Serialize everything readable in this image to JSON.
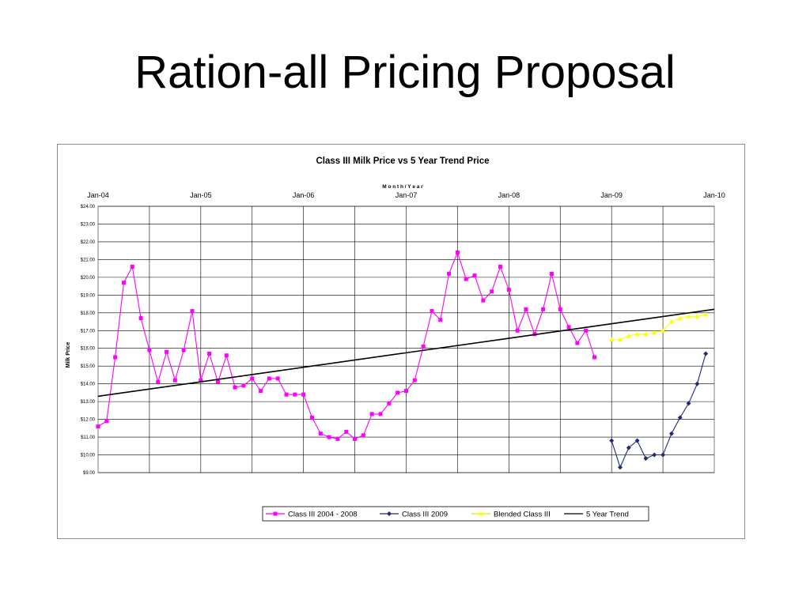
{
  "slide": {
    "title": "Ration-all Pricing Proposal"
  },
  "chart_data": {
    "type": "line",
    "title": "Class III Milk Price vs 5 Year Trend Price",
    "xlabel": "M o n t h  /  Y e a r",
    "ylabel": "Milk Price",
    "x_ticks": [
      "Jan-04",
      "Jan-05",
      "Jan-06",
      "Jan-07",
      "Jan-08",
      "Jan-09",
      "Jan-10"
    ],
    "xlim": [
      0,
      72
    ],
    "ylim": [
      9,
      24
    ],
    "y_ticks": [
      "$9.00",
      "$10.00",
      "$11.00",
      "$12.00",
      "$13.00",
      "$14.00",
      "$15.00",
      "$16.00",
      "$17.00",
      "$18.00",
      "$19.00",
      "$20.00",
      "$21.00",
      "$22.00",
      "$23.00",
      "$24.00"
    ],
    "x_tick_position": "top",
    "grid": true,
    "legend_position": "bottom",
    "series": [
      {
        "name": "Class III 2004 - 2008",
        "color": "#ff00ff",
        "marker": "square",
        "x": [
          0,
          1,
          2,
          3,
          4,
          5,
          6,
          7,
          8,
          9,
          10,
          11,
          12,
          13,
          14,
          15,
          16,
          17,
          18,
          19,
          20,
          21,
          22,
          23,
          24,
          25,
          26,
          27,
          28,
          29,
          30,
          31,
          32,
          33,
          34,
          35,
          36,
          37,
          38,
          39,
          40,
          41,
          42,
          43,
          44,
          45,
          46,
          47,
          48,
          49,
          50,
          51,
          52,
          53,
          54,
          55,
          56,
          57,
          58
        ],
        "values": [
          11.6,
          11.9,
          15.5,
          19.7,
          20.6,
          17.7,
          15.9,
          14.1,
          15.8,
          14.2,
          15.9,
          18.1,
          14.2,
          15.7,
          14.1,
          15.6,
          13.8,
          13.9,
          14.3,
          13.6,
          14.3,
          14.3,
          13.4,
          13.4,
          13.4,
          12.1,
          11.2,
          11.0,
          10.9,
          11.3,
          10.9,
          11.1,
          12.3,
          12.3,
          12.9,
          13.5,
          13.6,
          14.2,
          16.1,
          18.1,
          17.6,
          20.2,
          21.4,
          19.9,
          20.1,
          18.7,
          19.2,
          20.6,
          19.3,
          17.0,
          18.2,
          16.8,
          18.2,
          20.2,
          18.2,
          17.2,
          16.3,
          17.0,
          15.5
        ]
      },
      {
        "name": "Class III 2009",
        "color": "#1f2a7a",
        "marker": "diamond",
        "x": [
          60,
          61,
          62,
          63,
          64,
          65,
          66,
          67,
          68,
          69,
          70,
          71
        ],
        "values": [
          10.8,
          9.3,
          10.4,
          10.8,
          9.8,
          10.0,
          10.0,
          11.2,
          12.1,
          12.9,
          14.0,
          15.7
        ]
      },
      {
        "name": "Blended Class III",
        "color": "#ffff00",
        "marker": "triangle",
        "x": [
          60,
          61,
          62,
          63,
          64,
          65,
          66,
          67,
          68,
          69,
          70,
          71
        ],
        "values": [
          16.5,
          16.5,
          16.7,
          16.8,
          16.8,
          16.9,
          17.0,
          17.5,
          17.7,
          17.8,
          17.8,
          17.9
        ]
      },
      {
        "name": "5 Year Trend",
        "color": "#000000",
        "marker": "none",
        "x": [
          0,
          72
        ],
        "values": [
          13.3,
          18.2
        ]
      }
    ]
  }
}
